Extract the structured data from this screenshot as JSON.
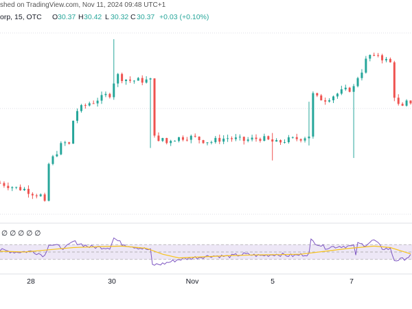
{
  "header": {
    "published": "shed on TradingView.com, Nov 11, 2024 09:48 UTC+1"
  },
  "legend": {
    "symbol": "orp, 15, OTC",
    "open_label": "O",
    "open": "30.37",
    "high_label": "H",
    "high": "30.42",
    "low_label": "L",
    "low": "30.32",
    "close_label": "C",
    "close": "30.37",
    "change": "+0.03 (+0.10%)"
  },
  "indicator": {
    "values_text": "∅ ∅ ∅ ∅ ∅"
  },
  "colors": {
    "up": "#26a69a",
    "down": "#ef5350",
    "rsi_line": "#7e57c2",
    "rsi_ma": "#f7c31a",
    "rsi_band": "#ede7f6",
    "grid": "#d1d4dc"
  },
  "chart_data": [
    {
      "type": "candlestick",
      "x_ticks": [
        "28",
        "30",
        "Nov",
        "5",
        "7"
      ],
      "close_path": [
        [
          0,
          29.8
        ],
        [
          2,
          29.78
        ],
        [
          4,
          29.76
        ],
        [
          6,
          29.75
        ],
        [
          8,
          29.72
        ],
        [
          10,
          29.7
        ],
        [
          11.5,
          29.6
        ],
        [
          12,
          29.95
        ],
        [
          13,
          30.0
        ],
        [
          14,
          30.05
        ],
        [
          15,
          30.1
        ],
        [
          16,
          30.12
        ],
        [
          17.5,
          30.1
        ],
        [
          18,
          30.3
        ],
        [
          19,
          30.38
        ],
        [
          20,
          30.4
        ],
        [
          21,
          30.42
        ],
        [
          22,
          30.44
        ],
        [
          23,
          30.45
        ],
        [
          24,
          30.47
        ],
        [
          25,
          30.48
        ],
        [
          26,
          30.5
        ],
        [
          27,
          30.51
        ],
        [
          27.8,
          30.5
        ],
        [
          28.2,
          30.72
        ],
        [
          29,
          30.66
        ],
        [
          30,
          30.64
        ],
        [
          31,
          30.63
        ],
        [
          32,
          30.62
        ],
        [
          33,
          30.62
        ],
        [
          35,
          30.62
        ],
        [
          36,
          30.62
        ],
        [
          37,
          30.62
        ],
        [
          37.6,
          30.28
        ],
        [
          38,
          30.2
        ],
        [
          39,
          30.12
        ],
        [
          40,
          30.16
        ],
        [
          41,
          30.12
        ],
        [
          42,
          30.15
        ],
        [
          44,
          30.16
        ],
        [
          46,
          30.17
        ],
        [
          48,
          30.16
        ],
        [
          50,
          30.14
        ],
        [
          52,
          30.13
        ],
        [
          54,
          30.15
        ],
        [
          56,
          30.16
        ],
        [
          58,
          30.15
        ],
        [
          60,
          30.14
        ],
        [
          62,
          30.15
        ],
        [
          64,
          30.16
        ],
        [
          66,
          30.14
        ],
        [
          68,
          30.12
        ],
        [
          70,
          30.14
        ],
        [
          72,
          30.15
        ],
        [
          74,
          30.16
        ],
        [
          76,
          30.18
        ],
        [
          76.5,
          30.52
        ],
        [
          78,
          30.48
        ],
        [
          80,
          30.47
        ],
        [
          82,
          30.5
        ],
        [
          84,
          30.53
        ],
        [
          86,
          30.55
        ],
        [
          87.5,
          30.57
        ],
        [
          88,
          30.65
        ],
        [
          89,
          30.7
        ],
        [
          90,
          30.78
        ],
        [
          91,
          30.82
        ],
        [
          92,
          30.8
        ],
        [
          93,
          30.83
        ],
        [
          94,
          30.8
        ],
        [
          95,
          30.78
        ],
        [
          96,
          30.76
        ],
        [
          97,
          30.5
        ],
        [
          98,
          30.42
        ],
        [
          99,
          30.4
        ],
        [
          100,
          30.44
        ],
        [
          101,
          30.45
        ]
      ],
      "events": [
        {
          "x": 28,
          "high": 30.95,
          "low": 30.55
        },
        {
          "x": 37.4,
          "high": 30.52,
          "low": 30.08
        },
        {
          "x": 47.5,
          "high": 30.25,
          "low": 29.88
        },
        {
          "x": 57.5,
          "high": 30.22,
          "low": 29.86
        },
        {
          "x": 67,
          "high": 30.2,
          "low": 29.98
        },
        {
          "x": 76.4,
          "high": 30.45,
          "low": 30.1
        },
        {
          "x": 87.4,
          "high": 30.42,
          "low": 30.0
        },
        {
          "x": 92.5,
          "high": 30.89,
          "low": 30.7
        }
      ],
      "ylim": [
        29.55,
        31.0
      ],
      "xlim": [
        0,
        101
      ]
    },
    {
      "type": "line",
      "name": "RSI",
      "ylim": [
        0,
        100
      ],
      "band": [
        30,
        70
      ],
      "rsi": [
        [
          0,
          55
        ],
        [
          4,
          50
        ],
        [
          8,
          52
        ],
        [
          11,
          40
        ],
        [
          12,
          72
        ],
        [
          16,
          60
        ],
        [
          18,
          78
        ],
        [
          22,
          64
        ],
        [
          27,
          62
        ],
        [
          28,
          88
        ],
        [
          30,
          72
        ],
        [
          34,
          62
        ],
        [
          37,
          55
        ],
        [
          37.5,
          15
        ],
        [
          40,
          18
        ],
        [
          44,
          30
        ],
        [
          48,
          35
        ],
        [
          52,
          40
        ],
        [
          56,
          38
        ],
        [
          60,
          44
        ],
        [
          64,
          40
        ],
        [
          68,
          44
        ],
        [
          72,
          40
        ],
        [
          76,
          45
        ],
        [
          76.4,
          82
        ],
        [
          80,
          62
        ],
        [
          84,
          66
        ],
        [
          87,
          65
        ],
        [
          87.4,
          38
        ],
        [
          88,
          72
        ],
        [
          90,
          70
        ],
        [
          92,
          82
        ],
        [
          94,
          60
        ],
        [
          96,
          58
        ],
        [
          97,
          28
        ],
        [
          99,
          30
        ],
        [
          101,
          40
        ]
      ],
      "ma": [
        [
          0,
          52
        ],
        [
          6,
          50
        ],
        [
          12,
          56
        ],
        [
          18,
          62
        ],
        [
          24,
          64
        ],
        [
          30,
          66
        ],
        [
          36,
          60
        ],
        [
          40,
          44
        ],
        [
          44,
          34
        ],
        [
          50,
          37
        ],
        [
          56,
          40
        ],
        [
          62,
          42
        ],
        [
          68,
          43
        ],
        [
          74,
          44
        ],
        [
          80,
          52
        ],
        [
          86,
          60
        ],
        [
          92,
          66
        ],
        [
          96,
          62
        ],
        [
          101,
          45
        ]
      ]
    }
  ]
}
